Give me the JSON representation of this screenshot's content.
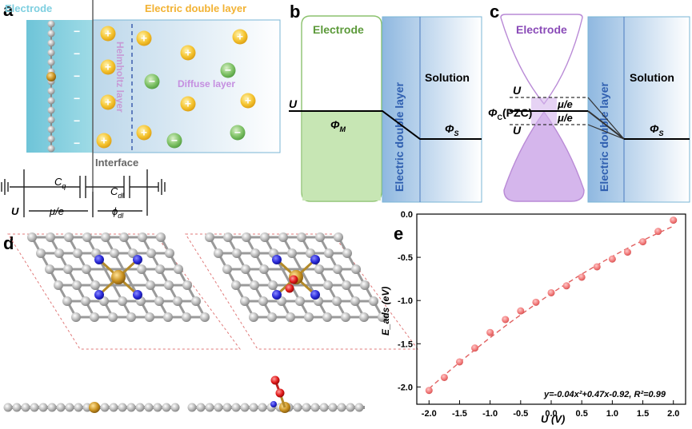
{
  "colors": {
    "electrode_cyan": "#7ecfe0",
    "edl_yellow": "#f2b233",
    "helmholtz_purple": "#c79ad6",
    "diffuse_purple": "#c58fe0",
    "electrode_green_text": "#5c9a3a",
    "electrode_green_fill": "#c7e6b4",
    "electrode_violet": "#8a4bb8",
    "edl_blue": "#5b8fd0",
    "scatter_red": "#ee6f6f"
  },
  "panel_labels": {
    "a": "a",
    "b": "b",
    "c": "c",
    "d": "d",
    "e": "e"
  },
  "panel_a": {
    "electrode": "Electrode",
    "edl": "Electric double layer",
    "helmholtz": "Helmholtz layer",
    "diffuse": "Diffuse layer",
    "interface": "Interface",
    "cq": "C",
    "cq_sub": "q",
    "cdl": "C",
    "cdl_sub": "dl",
    "u": "U",
    "mu_e": "μ/e",
    "phi_dl": "ϕ",
    "phi_dl_sub": "dl",
    "plus": "+",
    "minus": "−"
  },
  "panel_b": {
    "electrode": "Electrode",
    "edl": "Electric double layer",
    "solution": "Solution",
    "u": "U",
    "phi_m": "Φ",
    "phi_m_sub": "M",
    "phi_s": "Φ",
    "phi_s_sub": "S"
  },
  "panel_c": {
    "electrode": "Electrode",
    "edl": "Electric double layer",
    "solution": "Solution",
    "u_top": "U",
    "u_bottom": "U",
    "phi_c": "Φ",
    "phi_c_sub": "C",
    "pzc": "(PZC)",
    "mu_e_top": "μ/e",
    "mu_e_bottom": "μ/e",
    "phi_s": "Φ",
    "phi_s_sub": "S"
  },
  "chart_data": {
    "type": "scatter",
    "xlabel": "U (V)",
    "ylabel": "E_ads (eV)",
    "xlim": [
      -2.2,
      2.2
    ],
    "ylim": [
      -2.2,
      0.0
    ],
    "xticks": [
      -2.0,
      -1.5,
      -1.0,
      -0.5,
      0.0,
      0.5,
      1.0,
      1.5,
      2.0
    ],
    "yticks": [
      0.0,
      -0.5,
      -1.0,
      -1.5,
      -2.0
    ],
    "xtick_labels": [
      "-2.0",
      "-1.5",
      "-1.0",
      "-0.5",
      "0.0",
      "0.5",
      "1.0",
      "1.5",
      "2.0"
    ],
    "ytick_labels": [
      "0.0",
      "-0.5",
      "-1.0",
      "-1.5",
      "-2.0"
    ],
    "x": [
      -2.0,
      -1.75,
      -1.5,
      -1.25,
      -1.0,
      -0.75,
      -0.5,
      -0.25,
      0.0,
      0.25,
      0.5,
      0.75,
      1.0,
      1.25,
      1.5,
      1.75,
      2.0
    ],
    "y": [
      -2.04,
      -1.89,
      -1.71,
      -1.55,
      -1.37,
      -1.22,
      -1.12,
      -1.02,
      -0.91,
      -0.83,
      -0.73,
      -0.61,
      -0.52,
      -0.44,
      -0.32,
      -0.2,
      -0.07
    ],
    "fit": {
      "a": -0.04,
      "b": 0.47,
      "c": -0.92
    },
    "annotation": "y=-0.04x²+0.47x-0.92, R²=0.99"
  }
}
